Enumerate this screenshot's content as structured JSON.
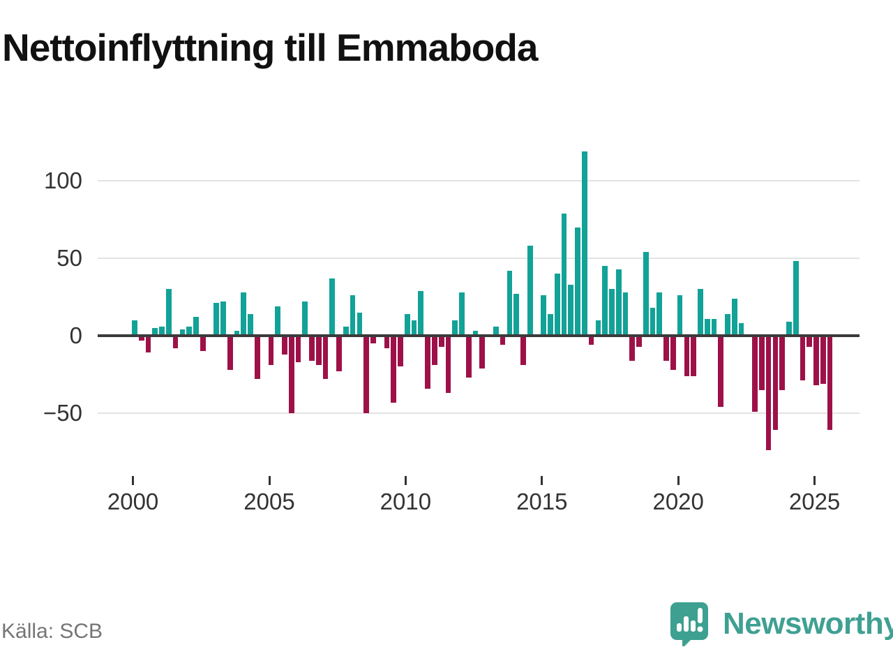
{
  "title": "Nettoinflyttning till Emmaboda",
  "source": "Källa: SCB",
  "branding": {
    "name": "Newsworthy",
    "icon": "newsworthy-pin-barchart-icon"
  },
  "colors": {
    "positive_bar": "#12a297",
    "negative_bar": "#9e1148",
    "gridline": "#e3e3e3",
    "zero_line": "#3b3b3b",
    "axis_text": "#333333",
    "source_text": "#757575",
    "brand_teal": "#3da090",
    "title_text": "#111111"
  },
  "chart_data": {
    "type": "bar",
    "title": "Nettoinflyttning till Emmaboda",
    "xlabel": "",
    "ylabel": "",
    "x_unit": "quarter",
    "start_period": "2000 Q1",
    "end_period": "2025 Q3",
    "x_tick_years": [
      2000,
      2005,
      2010,
      2015,
      2020,
      2025
    ],
    "y_ticks": [
      100,
      50,
      0,
      -50
    ],
    "ylim": [
      -80,
      127
    ],
    "grid": "horizontal",
    "legend": "none",
    "series": [
      {
        "name": "Nettoinflyttning per kvartal",
        "values": [
          10,
          -3,
          -11,
          5,
          6,
          30,
          -8,
          4,
          6,
          12,
          -10,
          0,
          21,
          22,
          -22,
          3,
          28,
          14,
          -28,
          0,
          -19,
          19,
          -12,
          -50,
          -17,
          22,
          -16,
          -19,
          -28,
          37,
          -23,
          6,
          26,
          15,
          -50,
          -5,
          0,
          -8,
          -43,
          -20,
          14,
          10,
          29,
          -34,
          -19,
          -7,
          -37,
          10,
          28,
          -27,
          3,
          -21,
          0,
          6,
          -6,
          42,
          27,
          -19,
          58,
          0,
          26,
          14,
          40,
          79,
          33,
          70,
          119,
          -6,
          10,
          45,
          30,
          43,
          28,
          -16,
          -7,
          54,
          18,
          28,
          -16,
          -22,
          26,
          -26,
          -26,
          30,
          11,
          11,
          -46,
          14,
          24,
          8,
          0,
          -49,
          -35,
          -74,
          -61,
          -35,
          9,
          48,
          -29,
          -7,
          -32,
          -31,
          -61
        ]
      }
    ]
  }
}
